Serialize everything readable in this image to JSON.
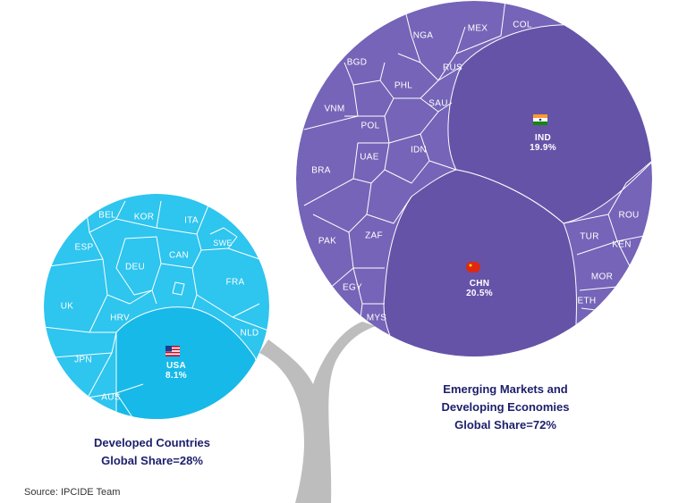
{
  "colors": {
    "developed": "#2ec5ef",
    "developed_dark": "#17b9e8",
    "emerging": "#7564b8",
    "emerging_dark": "#6553a8",
    "trunk": "#bdbdbd",
    "caption": "#1c1f6b"
  },
  "developed": {
    "caption_line1": "Developed Countries",
    "caption_line2": "Global Share=28%",
    "cells": [
      {
        "code": "BEL"
      },
      {
        "code": "KOR"
      },
      {
        "code": "ITA"
      },
      {
        "code": "SWE"
      },
      {
        "code": "ESP"
      },
      {
        "code": "DEU"
      },
      {
        "code": "CAN"
      },
      {
        "code": "FRA"
      },
      {
        "code": "UK"
      },
      {
        "code": "HRV"
      },
      {
        "code": "NLD"
      },
      {
        "code": "JPN"
      },
      {
        "code": "AUS"
      }
    ],
    "highlight": {
      "code": "USA",
      "share": "8.1%",
      "flag_icon": "usa-flag-icon"
    }
  },
  "emerging": {
    "caption_line1": "Emerging Markets and",
    "caption_line2": "Developing Economies",
    "caption_line3": "Global Share=72%",
    "cells": [
      {
        "code": "NGA"
      },
      {
        "code": "MEX"
      },
      {
        "code": "COL"
      },
      {
        "code": "BGD"
      },
      {
        "code": "RUS"
      },
      {
        "code": "PHL"
      },
      {
        "code": "SAU"
      },
      {
        "code": "VNM"
      },
      {
        "code": "POL"
      },
      {
        "code": "UAE"
      },
      {
        "code": "IDN"
      },
      {
        "code": "BRA"
      },
      {
        "code": "ZAF"
      },
      {
        "code": "PAK"
      },
      {
        "code": "EGY"
      },
      {
        "code": "MYS"
      },
      {
        "code": "ROU"
      },
      {
        "code": "TUR"
      },
      {
        "code": "KEN"
      },
      {
        "code": "MOR"
      },
      {
        "code": "ETH"
      }
    ],
    "highlights": [
      {
        "code": "IND",
        "share": "19.9%",
        "flag_icon": "india-flag-icon"
      },
      {
        "code": "CHN",
        "share": "20.5%",
        "flag_icon": "china-flag-icon"
      }
    ]
  },
  "source": "Source: IPCIDE Team"
}
